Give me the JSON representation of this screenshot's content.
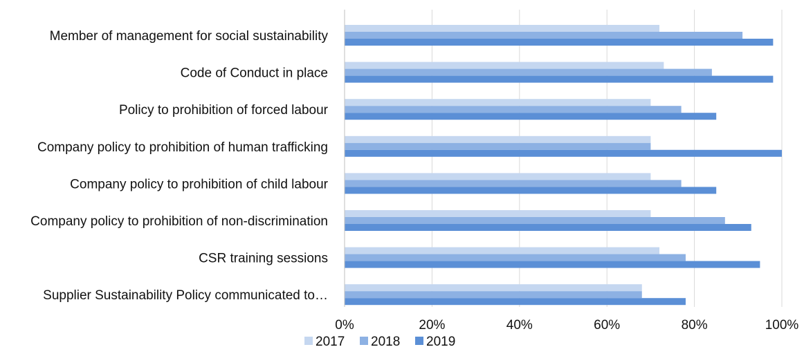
{
  "chart_data": {
    "type": "bar",
    "orientation": "horizontal",
    "title": "",
    "xlabel": "",
    "ylabel": "",
    "xlim": [
      0,
      100
    ],
    "x_ticks": [
      "0%",
      "20%",
      "40%",
      "60%",
      "80%",
      "100%"
    ],
    "x_tick_values": [
      0,
      20,
      40,
      60,
      80,
      100
    ],
    "grid": true,
    "legend_position": "bottom",
    "categories": [
      "Member of management for social sustainability",
      "Code of Conduct in place",
      "Policy to prohibition of forced labour",
      "Company policy to prohibition of human trafficking",
      "Company policy to prohibition of child labour",
      "Company policy to prohibition of non-discrimination",
      "CSR training sessions",
      "Supplier Sustainability Policy communicated to…"
    ],
    "series": [
      {
        "name": "2017",
        "color": "#c5d7f0",
        "values": [
          72,
          73,
          70,
          70,
          70,
          70,
          72,
          68
        ]
      },
      {
        "name": "2018",
        "color": "#8db1e3",
        "values": [
          91,
          84,
          77,
          70,
          77,
          87,
          78,
          68
        ]
      },
      {
        "name": "2019",
        "color": "#5b8fd6",
        "values": [
          98,
          98,
          85,
          100,
          85,
          93,
          95,
          78
        ]
      }
    ]
  }
}
